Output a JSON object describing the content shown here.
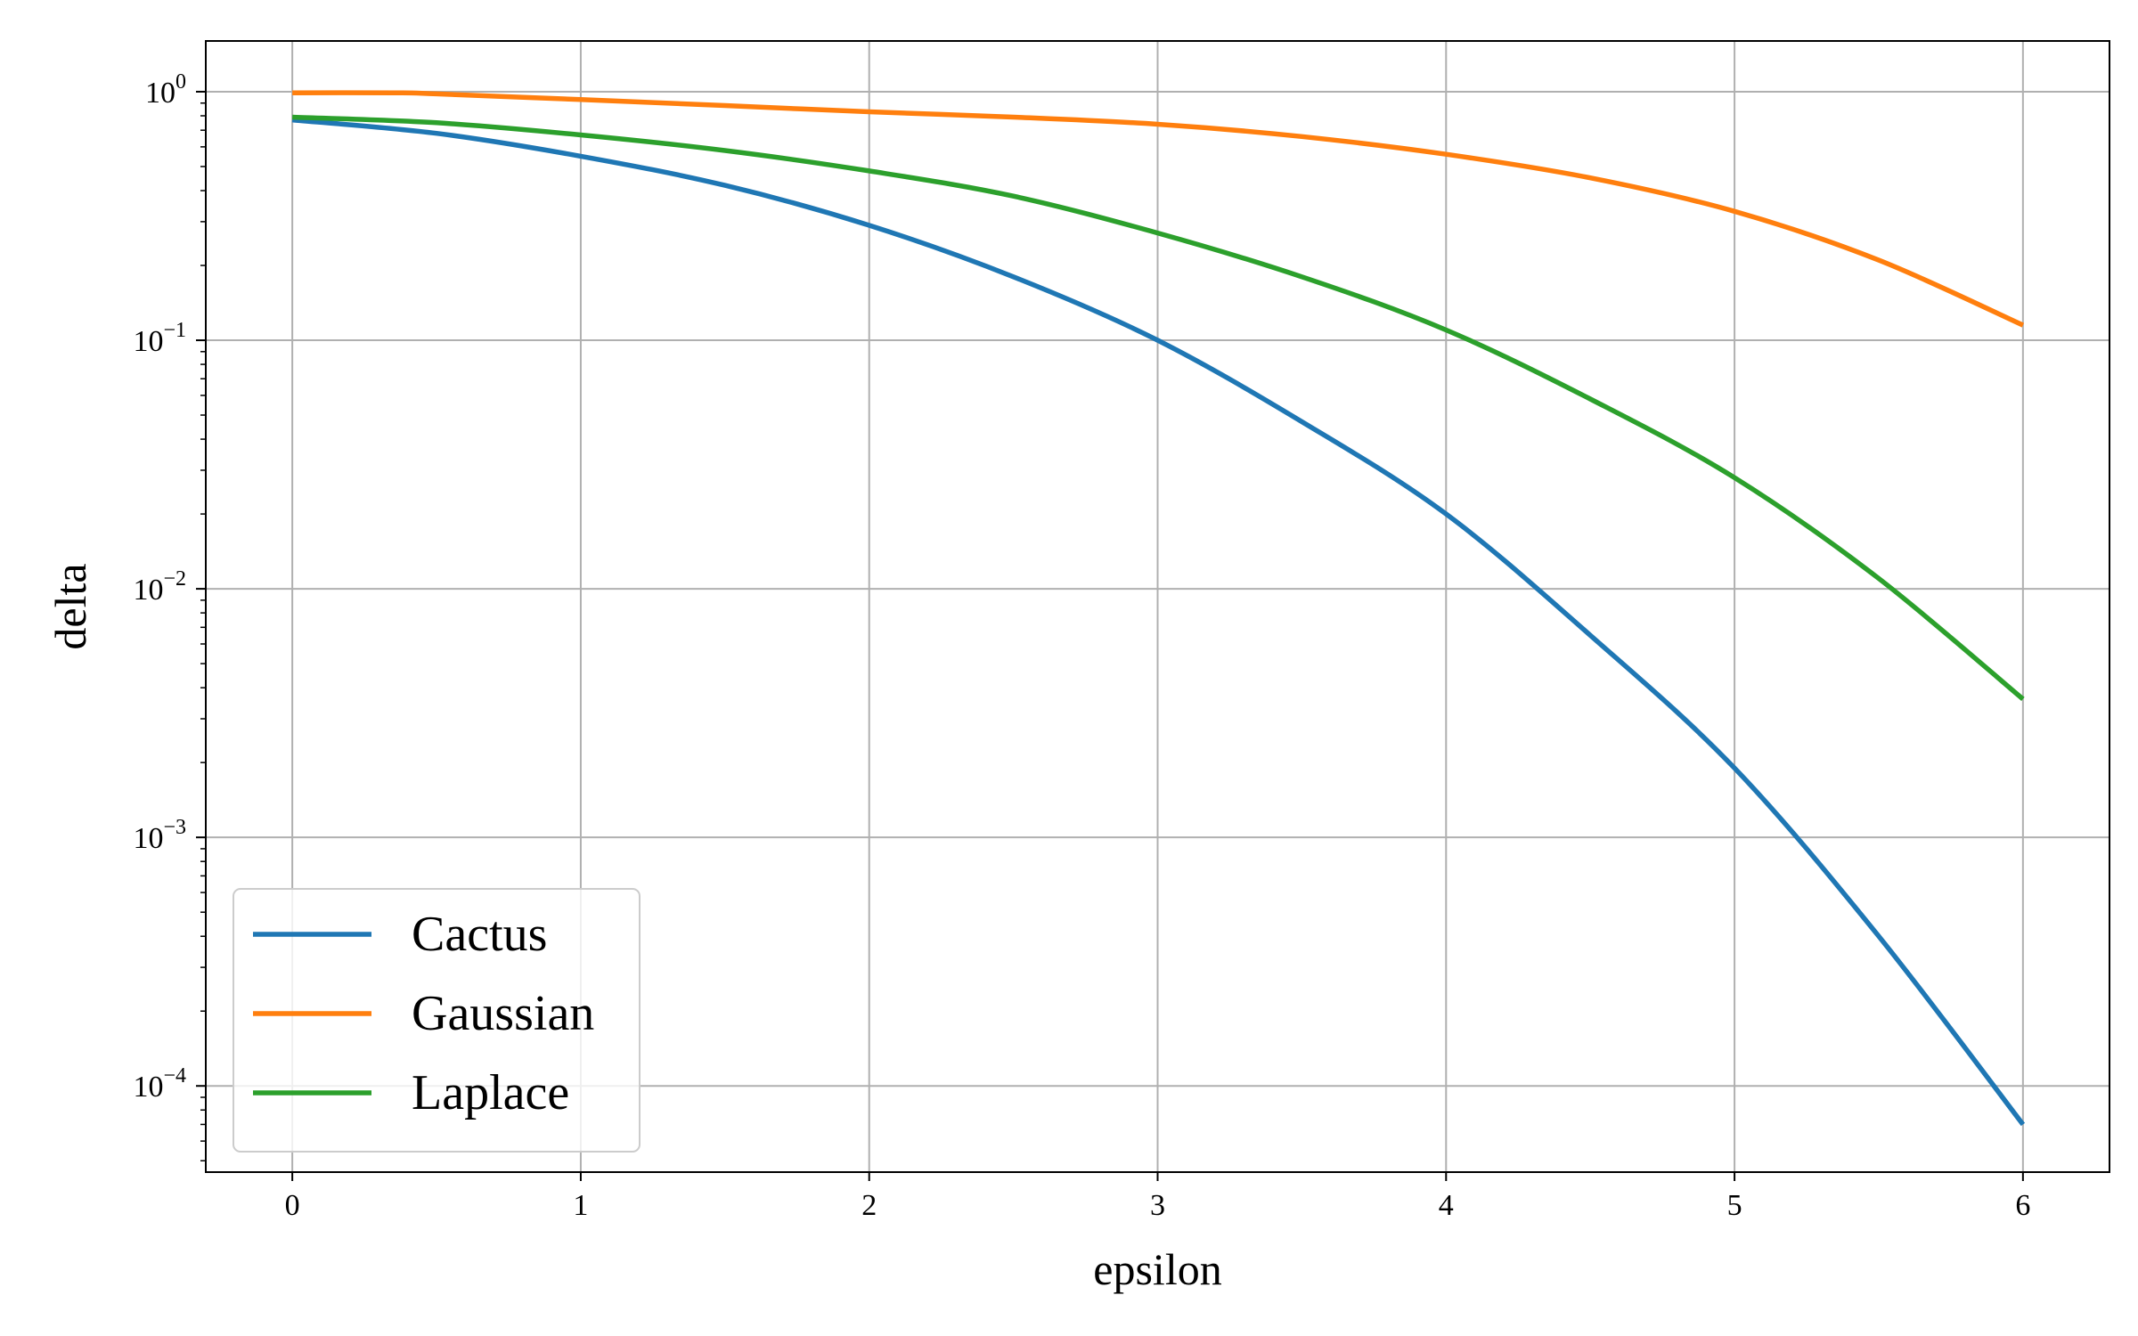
{
  "chart_data": {
    "type": "line",
    "title": "",
    "xlabel": "epsilon",
    "ylabel": "delta",
    "xlim": [
      -0.3,
      6.3
    ],
    "ylim": [
      4.5e-05,
      1.6
    ],
    "yscale": "log",
    "grid": true,
    "legend_position": "bottom-left",
    "x_ticks": [
      0,
      1,
      2,
      3,
      4,
      5,
      6
    ],
    "y_ticks": [
      {
        "value": 1,
        "base": "10",
        "exp": "0"
      },
      {
        "value": 0.1,
        "base": "10",
        "exp": "−1"
      },
      {
        "value": 0.01,
        "base": "10",
        "exp": "−2"
      },
      {
        "value": 0.001,
        "base": "10",
        "exp": "−3"
      },
      {
        "value": 0.0001,
        "base": "10",
        "exp": "−4"
      }
    ],
    "series": [
      {
        "name": "Cactus",
        "color": "#1f77b4",
        "x": [
          0,
          0.5,
          1,
          1.5,
          2,
          2.5,
          3,
          3.5,
          4,
          4.5,
          5,
          5.5,
          6
        ],
        "y": [
          0.77,
          0.68,
          0.55,
          0.42,
          0.29,
          0.18,
          0.1,
          0.047,
          0.02,
          0.0065,
          0.0019,
          0.0004,
          7e-05
        ]
      },
      {
        "name": "Gaussian",
        "color": "#ff7f0e",
        "x": [
          0,
          0.35,
          0.5,
          1,
          1.5,
          2,
          2.5,
          3,
          3.5,
          4,
          4.5,
          5,
          5.5,
          6
        ],
        "y": [
          0.99,
          0.99,
          0.98,
          0.93,
          0.88,
          0.83,
          0.79,
          0.74,
          0.66,
          0.56,
          0.45,
          0.33,
          0.21,
          0.115
        ]
      },
      {
        "name": "Laplace",
        "color": "#2ca02c",
        "x": [
          0,
          0.5,
          1,
          1.5,
          2,
          2.5,
          3,
          3.5,
          4,
          4.5,
          5,
          5.5,
          6
        ],
        "y": [
          0.79,
          0.75,
          0.67,
          0.58,
          0.48,
          0.38,
          0.27,
          0.18,
          0.11,
          0.058,
          0.028,
          0.011,
          0.0036
        ]
      }
    ]
  }
}
